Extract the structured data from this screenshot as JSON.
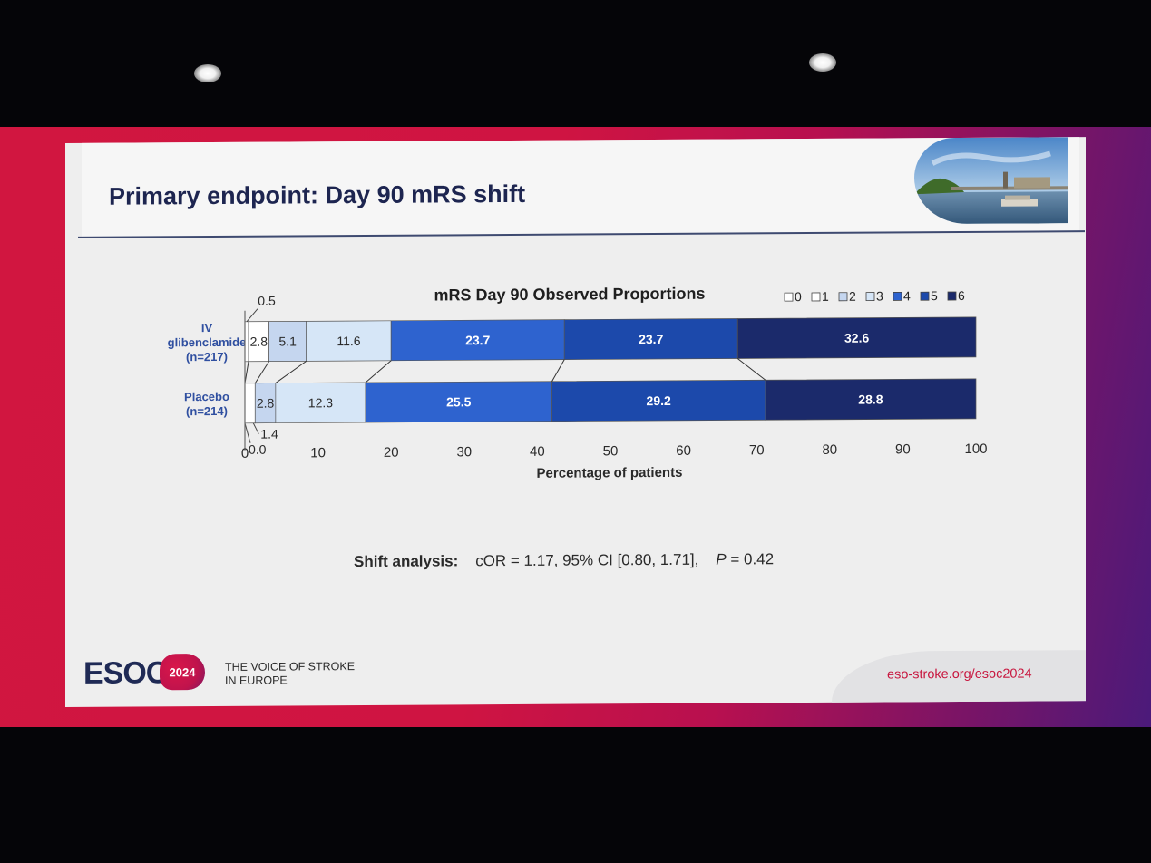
{
  "slide": {
    "title": "Primary endpoint: Day 90 mRS shift"
  },
  "chart_data": {
    "type": "bar",
    "orientation": "horizontal",
    "stacked": true,
    "title": "mRS Day 90 Observed Proportions",
    "xlabel": "Percentage of patients",
    "ylabel": "",
    "xlim": [
      0,
      100
    ],
    "xticks": [
      0,
      10,
      20,
      30,
      40,
      50,
      60,
      70,
      80,
      90,
      100
    ],
    "grid": false,
    "legend_position": "top-right",
    "categories": [
      {
        "label_lines": [
          "IV",
          "glibenclamide",
          "(n=217)"
        ]
      },
      {
        "label_lines": [
          "Placebo",
          "(n=214)"
        ]
      }
    ],
    "series": [
      {
        "name": "0",
        "color": "#ffffff",
        "values": [
          0.5,
          0.0
        ]
      },
      {
        "name": "1",
        "color": "#ffffff",
        "values": [
          2.8,
          1.4
        ]
      },
      {
        "name": "2",
        "color": "#c5d6ef",
        "values": [
          5.1,
          2.8
        ]
      },
      {
        "name": "3",
        "color": "#d6e6f7",
        "values": [
          11.6,
          12.3
        ]
      },
      {
        "name": "4",
        "color": "#2e63cf",
        "values": [
          23.7,
          25.5
        ]
      },
      {
        "name": "5",
        "color": "#1c49ab",
        "values": [
          23.7,
          29.2
        ]
      },
      {
        "name": "6",
        "color": "#1b2a6b",
        "values": [
          32.6,
          28.8
        ]
      }
    ],
    "data_labels": [
      {
        "bar": 0,
        "segment": 0,
        "text": "0.5",
        "placement": "above"
      },
      {
        "bar": 0,
        "segment": 1,
        "text": "2.8"
      },
      {
        "bar": 0,
        "segment": 2,
        "text": "5.1"
      },
      {
        "bar": 0,
        "segment": 3,
        "text": "11.6"
      },
      {
        "bar": 0,
        "segment": 4,
        "text": "23.7"
      },
      {
        "bar": 0,
        "segment": 5,
        "text": "23.7"
      },
      {
        "bar": 0,
        "segment": 6,
        "text": "32.6"
      },
      {
        "bar": 1,
        "segment": 0,
        "text": "0.0",
        "placement": "below-left"
      },
      {
        "bar": 1,
        "segment": 1,
        "text": "1.4",
        "placement": "below"
      },
      {
        "bar": 1,
        "segment": 2,
        "text": "2.8"
      },
      {
        "bar": 1,
        "segment": 3,
        "text": "12.3"
      },
      {
        "bar": 1,
        "segment": 4,
        "text": "25.5"
      },
      {
        "bar": 1,
        "segment": 5,
        "text": "29.2"
      },
      {
        "bar": 1,
        "segment": 6,
        "text": "28.8"
      }
    ]
  },
  "shift_analysis": {
    "label": "Shift analysis:",
    "stats": "cOR = 1.17,  95% CI [0.80, 1.71],",
    "p_label": "P",
    "p_value": " = 0.42"
  },
  "footer": {
    "logo_text": "ESOC",
    "year": "2024",
    "tagline_line1": "THE VOICE OF STROKE",
    "tagline_line2": "IN EUROPE",
    "url": "eso-stroke.org/esoc2024"
  },
  "colors": {
    "brand_red": "#c8173f",
    "title_navy": "#1d2550",
    "label_blue": "#2f4fa0"
  }
}
